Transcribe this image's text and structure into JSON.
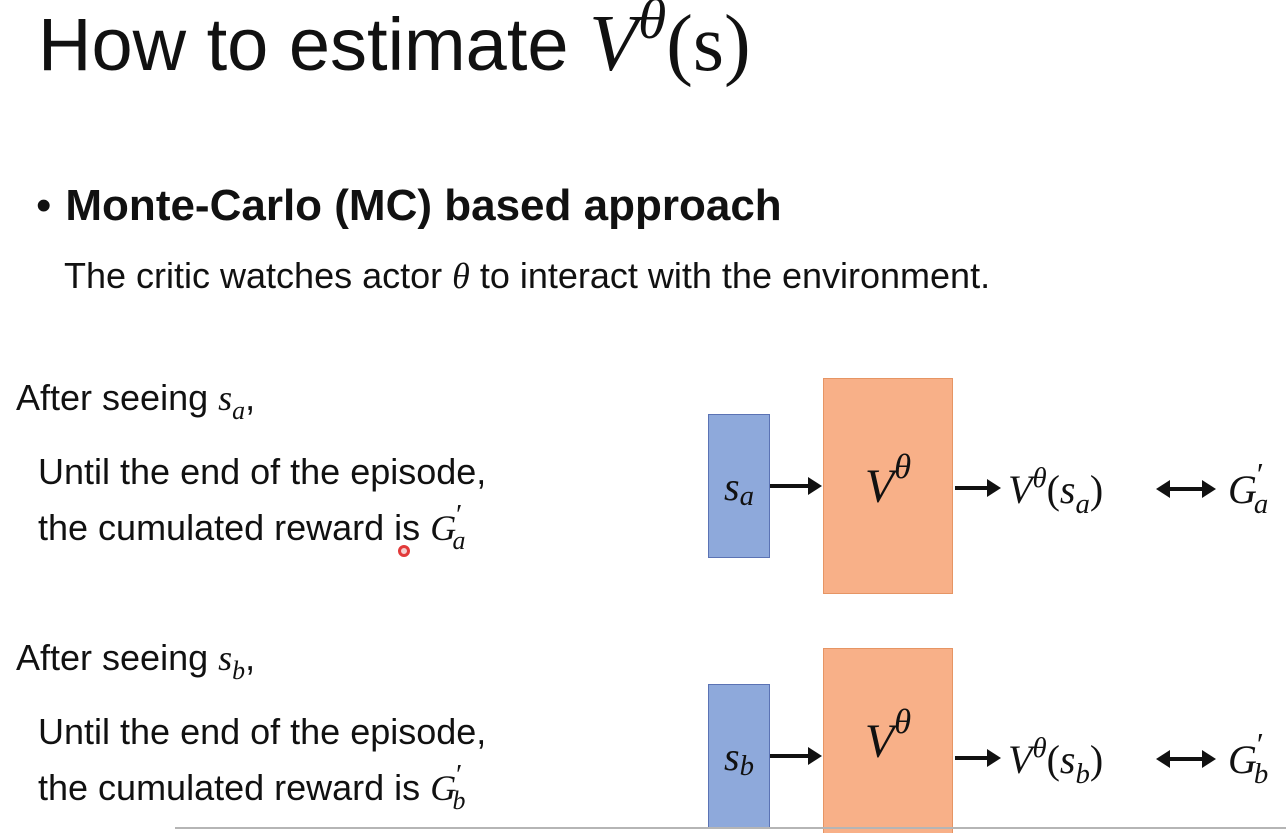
{
  "slide": {
    "title": {
      "prefix": "How to estimate ",
      "var": "V",
      "sup": "θ",
      "arg": "(s)"
    },
    "bullet": {
      "dot": "•",
      "heading": "Monte-Carlo (MC) based approach",
      "subline_pre": "The critic watches actor ",
      "subline_theta": "θ",
      "subline_post": " to interact with the environment."
    },
    "examples": [
      {
        "line1_pre": "After seeing ",
        "state_var": "s",
        "state_sub": "a",
        "line1_post": ",",
        "line2": "Until the end of the episode,",
        "line3_pre": "the cumulated reward is ",
        "reward_var": "G",
        "reward_sub": "a",
        "reward_prime": "′",
        "diagram": {
          "input_var": "s",
          "input_sub": "a",
          "network_var": "V",
          "network_sup": "θ",
          "output_var": "V",
          "output_sup": "θ",
          "output_open": "(",
          "output_state_var": "s",
          "output_state_sub": "a",
          "output_close": ")",
          "target_var": "G",
          "target_sub": "a",
          "target_prime": "′"
        }
      },
      {
        "line1_pre": "After seeing ",
        "state_var": "s",
        "state_sub": "b",
        "line1_post": ",",
        "line2": "Until the end of the episode,",
        "line3_pre": "the cumulated reward is ",
        "reward_var": "G",
        "reward_sub": "b",
        "reward_prime": "′",
        "diagram": {
          "input_var": "s",
          "input_sub": "b",
          "network_var": "V",
          "network_sup": "θ",
          "output_var": "V",
          "output_sup": "θ",
          "output_open": "(",
          "output_state_var": "s",
          "output_state_sub": "b",
          "output_close": ")",
          "target_var": "G",
          "target_sub": "b",
          "target_prime": "′"
        }
      }
    ],
    "colors": {
      "state_box": "#8ea9db",
      "network_box": "#f8b088",
      "pointer": "#e23a3a"
    }
  }
}
